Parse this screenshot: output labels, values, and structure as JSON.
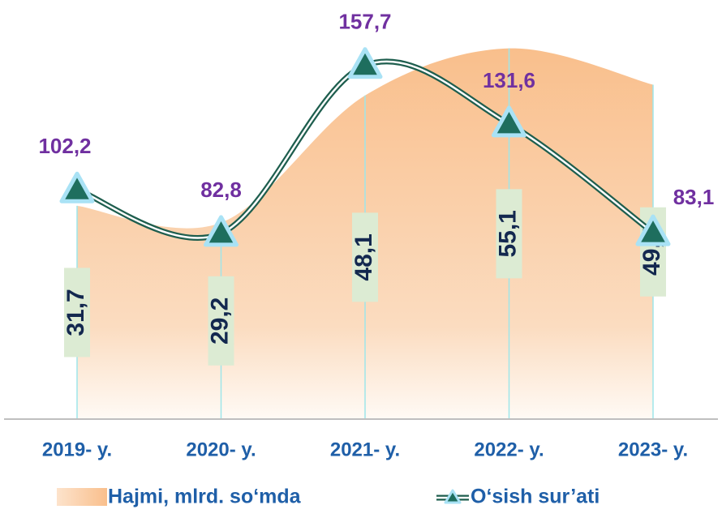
{
  "chart_data": {
    "type": "area_line",
    "categories": [
      "2019- y.",
      "2020- y.",
      "2021- y.",
      "2022- y.",
      "2023- y."
    ],
    "series": [
      {
        "name": "Hajmi, mlrd. so‘mda",
        "type": "area",
        "color": "#f9bf8c",
        "values": [
          31.7,
          29.2,
          48.1,
          55.1,
          49.7
        ],
        "value_labels": [
          "31,7",
          "29,2",
          "48,1",
          "55,1",
          "49,7"
        ]
      },
      {
        "name": "O‘sish sur’ati",
        "type": "line",
        "axis": "y2",
        "color": "#1e5e4e",
        "values": [
          102.2,
          82.8,
          157.7,
          131.6,
          83.1
        ],
        "value_labels": [
          "102,2",
          "82,8",
          "157,7",
          "131,6",
          "83,1"
        ]
      }
    ],
    "ylim": [
      0,
      60
    ],
    "y2lim": [
      0,
      180
    ]
  }
}
